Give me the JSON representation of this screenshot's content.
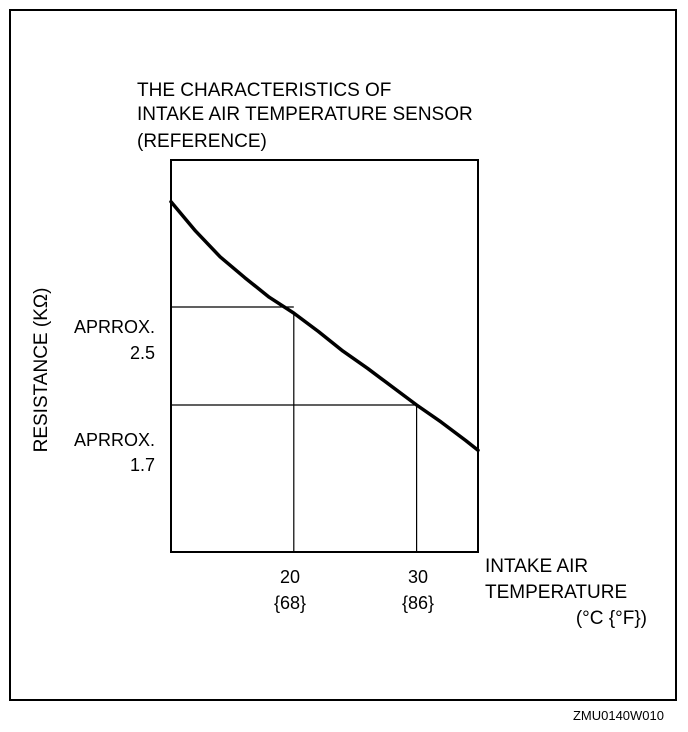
{
  "chart_data": {
    "type": "line",
    "title_lines": [
      "THE CHARACTERISTICS OF",
      "INTAKE AIR TEMPERATURE SENSOR",
      "(REFERENCE)"
    ],
    "ylabel": "RESISTANCE (KΩ)",
    "xlabel_lines": [
      "INTAKE AIR",
      "TEMPERATURE",
      "(°C {°F})"
    ],
    "xlim": [
      10,
      35
    ],
    "ylim": [
      0.5,
      3.7
    ],
    "x_ticks": [
      {
        "value": 20,
        "label": "20",
        "sublabel": "{68}"
      },
      {
        "value": 30,
        "label": "30",
        "sublabel": "{86}"
      }
    ],
    "y_ticks": [
      {
        "value": 2.5,
        "label": "APRROX.",
        "sublabel": "2.5"
      },
      {
        "value": 1.7,
        "label": "APRROX.",
        "sublabel": "1.7"
      }
    ],
    "series": [
      {
        "x": [
          10,
          12,
          14,
          16,
          18,
          20,
          22,
          24,
          26,
          28,
          30,
          32,
          34,
          35
        ],
        "y": [
          3.36,
          3.12,
          2.91,
          2.74,
          2.58,
          2.45,
          2.3,
          2.14,
          2.0,
          1.85,
          1.7,
          1.56,
          1.41,
          1.33
        ]
      }
    ],
    "grid": false,
    "reference_lines": true
  },
  "figure_code": "ZMU0140W010",
  "colors": {
    "line": "#000000",
    "background": "#ffffff"
  }
}
